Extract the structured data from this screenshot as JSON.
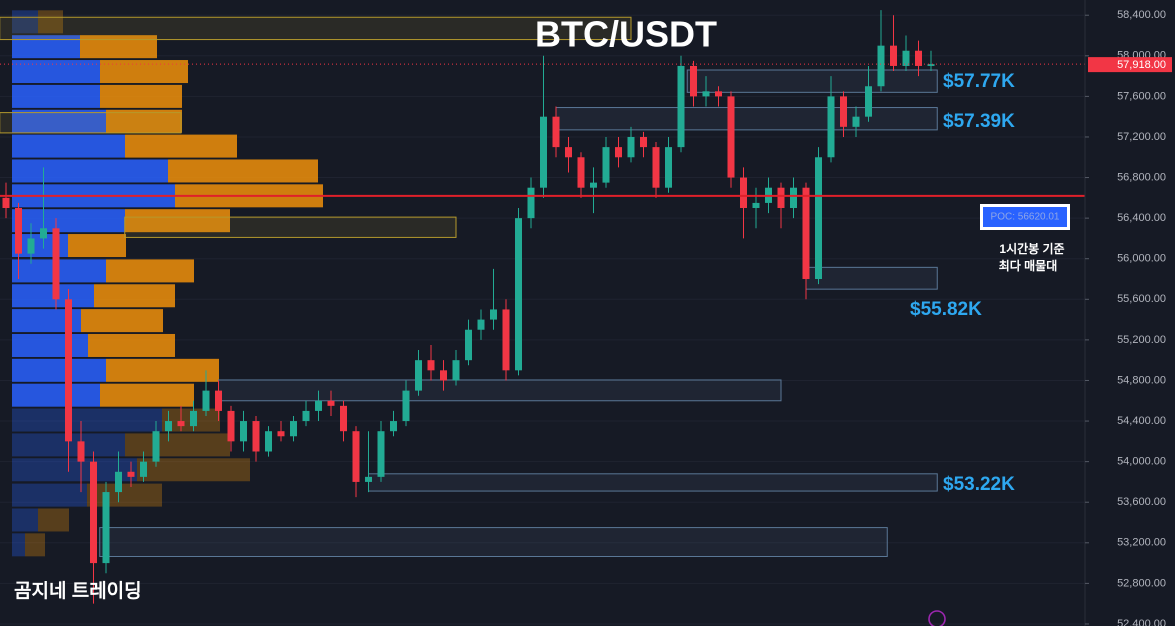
{
  "chart_data": {
    "type": "candlestick",
    "title": "BTC/USDT",
    "watermark": "곰지네 트레이딩",
    "up_color": "#22ab94",
    "down_color": "#f23645",
    "ylim": [
      52380,
      58550
    ],
    "yticks": [
      {
        "value": 52400,
        "label": "52,400.00"
      },
      {
        "value": 52800,
        "label": "52,800.00"
      },
      {
        "value": 53200,
        "label": "53,200.00"
      },
      {
        "value": 53600,
        "label": "53,600.00"
      },
      {
        "value": 54000,
        "label": "54,000.00"
      },
      {
        "value": 54400,
        "label": "54,400.00"
      },
      {
        "value": 54800,
        "label": "54,800.00"
      },
      {
        "value": 55200,
        "label": "55,200.00"
      },
      {
        "value": 55600,
        "label": "55,600.00"
      },
      {
        "value": 56000,
        "label": "56,000.00"
      },
      {
        "value": 56400,
        "label": "56,400.00"
      },
      {
        "value": 56800,
        "label": "56,800.00"
      },
      {
        "value": 57200,
        "label": "57,200.00"
      },
      {
        "value": 57600,
        "label": "57,600.00"
      },
      {
        "value": 58000,
        "label": "58,000.00"
      },
      {
        "value": 58400,
        "label": "58,400.00"
      }
    ],
    "candles": [
      [
        56600,
        56750,
        56400,
        56500
      ],
      [
        56500,
        56550,
        55800,
        56050
      ],
      [
        56050,
        56350,
        55950,
        56200
      ],
      [
        56200,
        56900,
        56100,
        56300
      ],
      [
        56300,
        56400,
        55500,
        55600
      ],
      [
        55600,
        55700,
        53900,
        54200
      ],
      [
        54200,
        54400,
        53700,
        54000
      ],
      [
        54000,
        54100,
        52600,
        53000
      ],
      [
        53000,
        53800,
        52900,
        53700
      ],
      [
        53700,
        54100,
        53600,
        53900
      ],
      [
        53900,
        54000,
        53750,
        53850
      ],
      [
        53850,
        54100,
        53800,
        54000
      ],
      [
        54000,
        54400,
        53950,
        54300
      ],
      [
        54300,
        54500,
        54200,
        54400
      ],
      [
        54400,
        54550,
        54300,
        54350
      ],
      [
        54350,
        54600,
        54300,
        54500
      ],
      [
        54500,
        54900,
        54450,
        54700
      ],
      [
        54700,
        54800,
        54400,
        54500
      ],
      [
        54500,
        54550,
        54100,
        54200
      ],
      [
        54200,
        54500,
        54100,
        54400
      ],
      [
        54400,
        54450,
        54000,
        54100
      ],
      [
        54100,
        54350,
        54050,
        54300
      ],
      [
        54300,
        54400,
        54200,
        54250
      ],
      [
        54250,
        54450,
        54200,
        54400
      ],
      [
        54400,
        54600,
        54350,
        54500
      ],
      [
        54500,
        54700,
        54400,
        54600
      ],
      [
        54600,
        54700,
        54450,
        54550
      ],
      [
        54550,
        54600,
        54200,
        54300
      ],
      [
        54300,
        54350,
        53650,
        53800
      ],
      [
        53800,
        54300,
        53700,
        53850
      ],
      [
        53850,
        54400,
        53800,
        54300
      ],
      [
        54300,
        54500,
        54250,
        54400
      ],
      [
        54400,
        54800,
        54350,
        54700
      ],
      [
        54700,
        55100,
        54650,
        55000
      ],
      [
        55000,
        55150,
        54800,
        54900
      ],
      [
        54900,
        55000,
        54700,
        54800
      ],
      [
        54800,
        55100,
        54750,
        55000
      ],
      [
        55000,
        55400,
        54950,
        55300
      ],
      [
        55300,
        55500,
        55200,
        55400
      ],
      [
        55400,
        55900,
        55300,
        55500
      ],
      [
        55500,
        55600,
        54800,
        54900
      ],
      [
        54900,
        56500,
        54850,
        56400
      ],
      [
        56400,
        56800,
        56300,
        56700
      ],
      [
        56700,
        58000,
        56600,
        57400
      ],
      [
        57400,
        57500,
        57000,
        57100
      ],
      [
        57100,
        57200,
        56850,
        57000
      ],
      [
        57000,
        57050,
        56600,
        56700
      ],
      [
        56700,
        56900,
        56450,
        56750
      ],
      [
        56750,
        57200,
        56700,
        57100
      ],
      [
        57100,
        57200,
        56900,
        57000
      ],
      [
        57000,
        57300,
        56950,
        57200
      ],
      [
        57200,
        57250,
        57000,
        57100
      ],
      [
        57100,
        57150,
        56600,
        56700
      ],
      [
        56700,
        57200,
        56650,
        57100
      ],
      [
        57100,
        58000,
        57050,
        57900
      ],
      [
        57900,
        57950,
        57500,
        57600
      ],
      [
        57600,
        57800,
        57500,
        57650
      ],
      [
        57650,
        57700,
        57500,
        57600
      ],
      [
        57600,
        57650,
        56700,
        56800
      ],
      [
        56800,
        56900,
        56200,
        56500
      ],
      [
        56500,
        56700,
        56300,
        56550
      ],
      [
        56550,
        56800,
        56450,
        56700
      ],
      [
        56700,
        56750,
        56300,
        56500
      ],
      [
        56500,
        56800,
        56400,
        56700
      ],
      [
        56700,
        56750,
        55600,
        55800
      ],
      [
        55800,
        57100,
        55750,
        57000
      ],
      [
        57000,
        57800,
        56950,
        57600
      ],
      [
        57600,
        57650,
        57200,
        57300
      ],
      [
        57300,
        57500,
        57200,
        57400
      ],
      [
        57400,
        57900,
        57350,
        57700
      ],
      [
        57700,
        58450,
        57650,
        58100
      ],
      [
        58100,
        58400,
        57850,
        57900
      ],
      [
        57900,
        58200,
        57850,
        58050
      ],
      [
        58050,
        58150,
        57800,
        57900
      ],
      [
        57900,
        58050,
        57850,
        57918
      ]
    ],
    "volume_profile": {
      "xlim": [
        0,
        1085
      ],
      "value_area": [
        54600,
        58100
      ],
      "buy_color": "#2962ff",
      "sell_color": "#f0910a",
      "levels": [
        58330,
        58085,
        57840,
        57595,
        57350,
        57105,
        56860,
        56615,
        56370,
        56125,
        55875,
        55630,
        55385,
        55140,
        54895,
        54650,
        54405,
        54160,
        53915,
        53665,
        53420,
        53175
      ],
      "buy": [
        26,
        68,
        88,
        88,
        94,
        113,
        156,
        163,
        113,
        56,
        94,
        82,
        69,
        76,
        94,
        88,
        150,
        113,
        125,
        75,
        26,
        13
      ],
      "sell": [
        25,
        77,
        88,
        82,
        76,
        112,
        150,
        148,
        105,
        58,
        88,
        81,
        82,
        87,
        113,
        94,
        58,
        105,
        113,
        75,
        31,
        20
      ]
    },
    "zones": [
      {
        "start": -0.5,
        "end": 50,
        "y": [
          58160,
          58380
        ],
        "color": "#b59a2c"
      },
      {
        "start": -0.5,
        "end": 14,
        "y": [
          57240,
          57440
        ],
        "color": "#b59a2c"
      },
      {
        "start": 9.5,
        "end": 36,
        "y": [
          56210,
          56410
        ],
        "color": "#b59a2c"
      },
      {
        "start": 54.5,
        "end": 74.5,
        "y": [
          57640,
          57860
        ],
        "color": "#5a7796"
      },
      {
        "start": 44,
        "end": 74.5,
        "y": [
          57270,
          57490
        ],
        "color": "#5a7796"
      },
      {
        "start": 64,
        "end": 74.5,
        "y": [
          55700,
          55915
        ],
        "color": "#5a7796"
      },
      {
        "start": 17,
        "end": 62,
        "y": [
          54600,
          54805
        ],
        "color": "#5a7796"
      },
      {
        "start": 29,
        "end": 74.5,
        "y": [
          53710,
          53880
        ],
        "color": "#5a7796"
      },
      {
        "start": 7.5,
        "end": 70.5,
        "y": [
          53065,
          53350
        ],
        "color": "#5a7796"
      }
    ],
    "annotations": [
      "$57.77K",
      "$57.39K",
      "$55.82K",
      "$53.22K"
    ],
    "poc": {
      "value": 56620.01,
      "label": "POC: 56620.01",
      "color": "#e0202a"
    },
    "poc_note": [
      "1시간봉 기준",
      "최다 매물대"
    ],
    "last_price": {
      "value": 57918,
      "label": "57,918.00",
      "color": "#f23645"
    }
  }
}
